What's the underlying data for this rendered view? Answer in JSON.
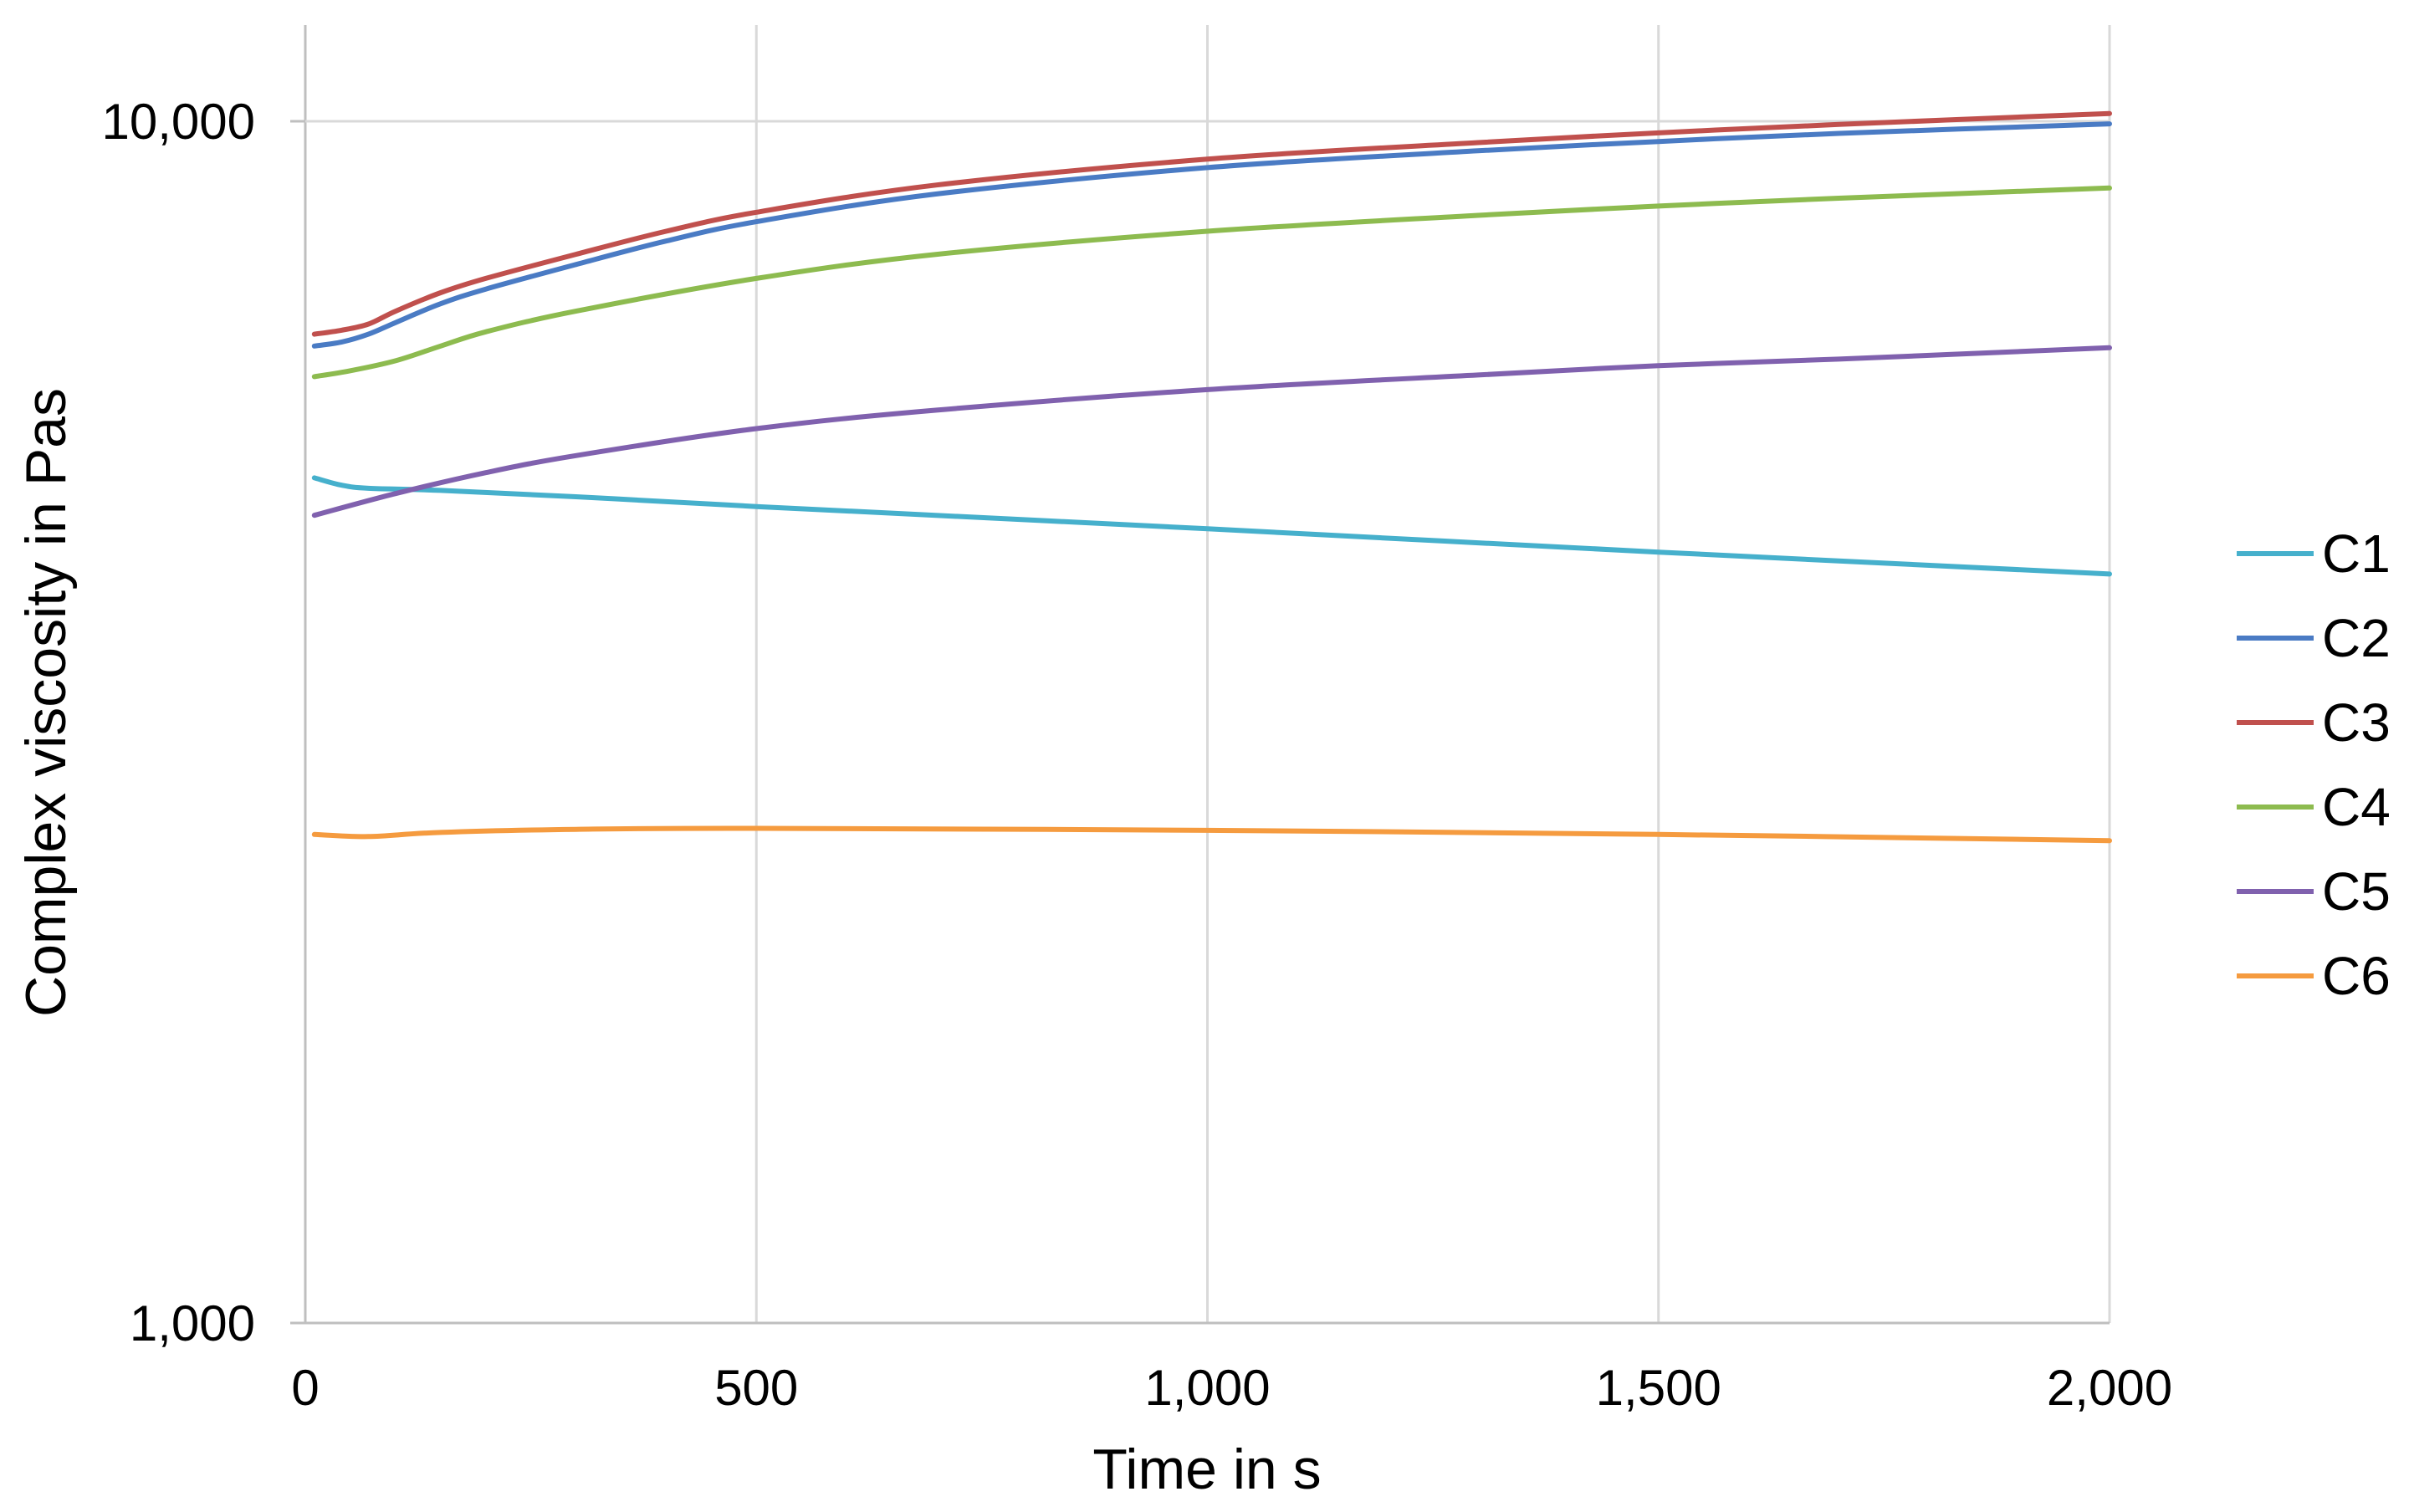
{
  "chart_data": {
    "type": "line",
    "title": "",
    "xlabel": "Time in s",
    "ylabel": "Complex viscosity in Pas",
    "xlim": [
      0,
      2000
    ],
    "ylim": [
      1000,
      10000
    ],
    "y_scale": "log",
    "grid": "vertical",
    "legend": "right",
    "x_ticks": [
      0,
      500,
      1000,
      1500,
      2000
    ],
    "x_tick_labels": [
      "0",
      "500",
      "1,000",
      "1,500",
      "2,000"
    ],
    "y_ticks": [
      1000,
      10000
    ],
    "y_tick_labels": [
      "1,000",
      "10,000"
    ],
    "series": [
      {
        "name": "C1",
        "color": "#46B0CC",
        "x": [
          10,
          40,
          70,
          150,
          300,
          500,
          1000,
          1500,
          2000
        ],
        "y": [
          5050,
          4980,
          4950,
          4930,
          4870,
          4780,
          4580,
          4380,
          4200
        ]
      },
      {
        "name": "C2",
        "color": "#4A7BC4",
        "x": [
          10,
          40,
          70,
          100,
          150,
          200,
          300,
          400,
          500,
          700,
          1000,
          1300,
          1500,
          1700,
          2000
        ],
        "y": [
          6500,
          6550,
          6650,
          6800,
          7050,
          7250,
          7600,
          7950,
          8250,
          8700,
          9150,
          9450,
          9620,
          9770,
          9950
        ]
      },
      {
        "name": "C3",
        "color": "#C0504D",
        "x": [
          10,
          40,
          70,
          100,
          150,
          200,
          300,
          400,
          500,
          700,
          1000,
          1300,
          1500,
          1700,
          2000
        ],
        "y": [
          6650,
          6700,
          6780,
          6950,
          7200,
          7400,
          7750,
          8100,
          8400,
          8850,
          9300,
          9600,
          9780,
          9940,
          10150
        ]
      },
      {
        "name": "C4",
        "color": "#8DBB4F",
        "x": [
          10,
          50,
          100,
          150,
          200,
          300,
          500,
          700,
          1000,
          1300,
          1500,
          1700,
          2000
        ],
        "y": [
          6130,
          6200,
          6320,
          6500,
          6680,
          6950,
          7400,
          7750,
          8100,
          8350,
          8500,
          8630,
          8800
        ]
      },
      {
        "name": "C5",
        "color": "#8061AE",
        "x": [
          10,
          100,
          200,
          300,
          500,
          700,
          1000,
          1300,
          1500,
          1700,
          2000
        ],
        "y": [
          4700,
          4900,
          5100,
          5270,
          5550,
          5750,
          5980,
          6150,
          6260,
          6340,
          6480
        ]
      },
      {
        "name": "C6",
        "color": "#F59B3F",
        "x": [
          10,
          70,
          150,
          300,
          500,
          1000,
          1500,
          2000
        ],
        "y": [
          2550,
          2540,
          2560,
          2575,
          2580,
          2570,
          2550,
          2520
        ]
      }
    ]
  }
}
